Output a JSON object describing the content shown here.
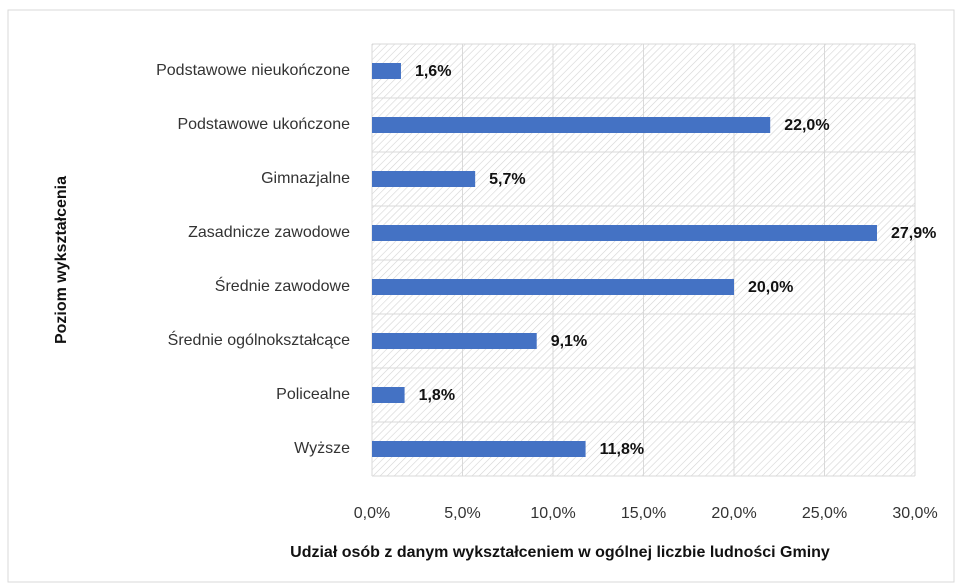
{
  "chart_data": {
    "type": "bar",
    "orientation": "horizontal",
    "x_label": "Udział osób z danym wykształceniem w ogólnej liczbie ludności Gminy",
    "y_label": "Poziom wykształcenia",
    "categories": [
      "Podstawowe nieukończone",
      "Podstawowe ukończone",
      "Gimnazjalne",
      "Zasadnicze zawodowe",
      "Średnie zawodowe",
      "Średnie ogólnokształcące",
      "Policealne",
      "Wyższe"
    ],
    "values": [
      1.6,
      22.0,
      5.7,
      27.9,
      20.0,
      9.1,
      1.8,
      11.8
    ],
    "value_labels": [
      "1,6%",
      "22,0%",
      "5,7%",
      "27,9%",
      "20,0%",
      "9,1%",
      "1,8%",
      "11,8%"
    ],
    "color": "#4472c4",
    "xlim": [
      0,
      30
    ],
    "xticks": [
      {
        "value": 0,
        "label": "0,0%"
      },
      {
        "value": 5,
        "label": "5,0%"
      },
      {
        "value": 10,
        "label": "10,0%"
      },
      {
        "value": 15,
        "label": "15,0%"
      },
      {
        "value": 20,
        "label": "20,0%"
      },
      {
        "value": 25,
        "label": "25,0%"
      },
      {
        "value": 30,
        "label": "30,0%"
      }
    ],
    "grid": true
  }
}
